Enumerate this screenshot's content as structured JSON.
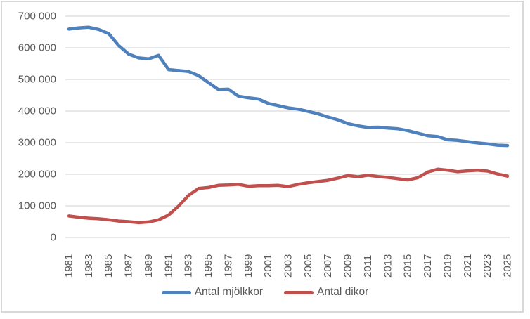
{
  "chart_data": {
    "type": "line",
    "title": "",
    "xlabel": "",
    "ylabel": "",
    "x": [
      1981,
      1982,
      1983,
      1984,
      1985,
      1986,
      1987,
      1988,
      1989,
      1990,
      1991,
      1992,
      1993,
      1994,
      1995,
      1996,
      1997,
      1998,
      1999,
      2000,
      2001,
      2002,
      2003,
      2004,
      2005,
      2006,
      2007,
      2008,
      2009,
      2010,
      2011,
      2012,
      2013,
      2014,
      2015,
      2016,
      2017,
      2018,
      2019,
      2020,
      2021,
      2022,
      2023,
      2024,
      2025
    ],
    "series": [
      {
        "name": "Antal mjölkkor",
        "color": "#4F81BD",
        "values": [
          659000,
          663000,
          665000,
          658000,
          645000,
          607000,
          580000,
          568000,
          565000,
          576000,
          531000,
          528000,
          525000,
          512000,
          490000,
          468000,
          469000,
          447000,
          442000,
          438000,
          424000,
          417000,
          410000,
          406000,
          399000,
          391000,
          381000,
          372000,
          360000,
          353000,
          348000,
          349000,
          346000,
          344000,
          338000,
          330000,
          322000,
          319000,
          309000,
          307000,
          303000,
          299000,
          296000,
          292000,
          291000
        ]
      },
      {
        "name": "Antal dikor",
        "color": "#C0504D",
        "values": [
          68000,
          64000,
          61000,
          59000,
          56000,
          52000,
          50000,
          47000,
          49000,
          56000,
          71000,
          99000,
          133000,
          155000,
          158000,
          165000,
          166000,
          168000,
          162000,
          164000,
          164000,
          165000,
          161000,
          168000,
          173000,
          177000,
          181000,
          188000,
          196000,
          192000,
          197000,
          193000,
          190000,
          186000,
          182000,
          189000,
          207000,
          216000,
          213000,
          208000,
          211000,
          213000,
          210000,
          201000,
          194000
        ]
      }
    ],
    "ylim": [
      0,
      700000
    ],
    "y_ticks": [
      {
        "value": 0,
        "label": "0"
      },
      {
        "value": 100000,
        "label": "100 000"
      },
      {
        "value": 200000,
        "label": "200 000"
      },
      {
        "value": 300000,
        "label": "300 000"
      },
      {
        "value": 400000,
        "label": "400 000"
      },
      {
        "value": 500000,
        "label": "500 000"
      },
      {
        "value": 600000,
        "label": "600 000"
      },
      {
        "value": 700000,
        "label": "700 000"
      }
    ],
    "x_tick_labels": [
      "1981",
      "1983",
      "1985",
      "1987",
      "1989",
      "1991",
      "1993",
      "1995",
      "1997",
      "1999",
      "2001",
      "2003",
      "2005",
      "2007",
      "2009",
      "2011",
      "2013",
      "2015",
      "2017",
      "2019",
      "2021",
      "2023",
      "2025"
    ],
    "grid": "horizontal-only",
    "legend_position": "bottom-center"
  },
  "legend": {
    "items": [
      {
        "label": "Antal mjölkkor",
        "color": "#4F81BD"
      },
      {
        "label": "Antal dikor",
        "color": "#C0504D"
      }
    ]
  },
  "colors": {
    "background": "#FFFFFF",
    "gridline": "#D9D9D9",
    "border": "#D9D9D9",
    "axis_text": "#595959"
  }
}
